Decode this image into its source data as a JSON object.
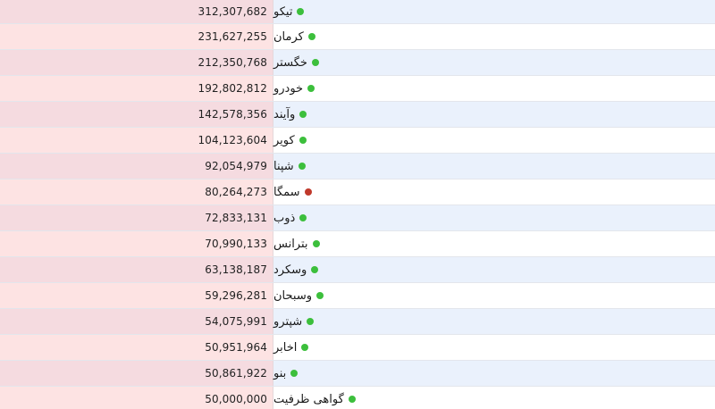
{
  "colors": {
    "status_up": "#3cbf3c",
    "status_down": "#c0392b"
  },
  "rows": [
    {
      "name": "تیکو",
      "value": "312,307,682",
      "status": "up"
    },
    {
      "name": "کرمان",
      "value": "231,627,255",
      "status": "up"
    },
    {
      "name": "خگستر",
      "value": "212,350,768",
      "status": "up"
    },
    {
      "name": "خودرو",
      "value": "192,802,812",
      "status": "up"
    },
    {
      "name": "وآیند",
      "value": "142,578,356",
      "status": "up"
    },
    {
      "name": "کویر",
      "value": "104,123,604",
      "status": "up"
    },
    {
      "name": "شپنا",
      "value": "92,054,979",
      "status": "up"
    },
    {
      "name": "سمگا",
      "value": "80,264,273",
      "status": "down"
    },
    {
      "name": "ذوب",
      "value": "72,833,131",
      "status": "up"
    },
    {
      "name": "بترانس",
      "value": "70,990,133",
      "status": "up"
    },
    {
      "name": "وسکرد",
      "value": "63,138,187",
      "status": "up"
    },
    {
      "name": "وسبحان",
      "value": "59,296,281",
      "status": "up"
    },
    {
      "name": "شپترو",
      "value": "54,075,991",
      "status": "up"
    },
    {
      "name": "اخابر",
      "value": "50,951,964",
      "status": "up"
    },
    {
      "name": "بنو",
      "value": "50,861,922",
      "status": "up"
    },
    {
      "name": "گواهی ظرفیت",
      "value": "50,000,000",
      "status": "up"
    }
  ]
}
